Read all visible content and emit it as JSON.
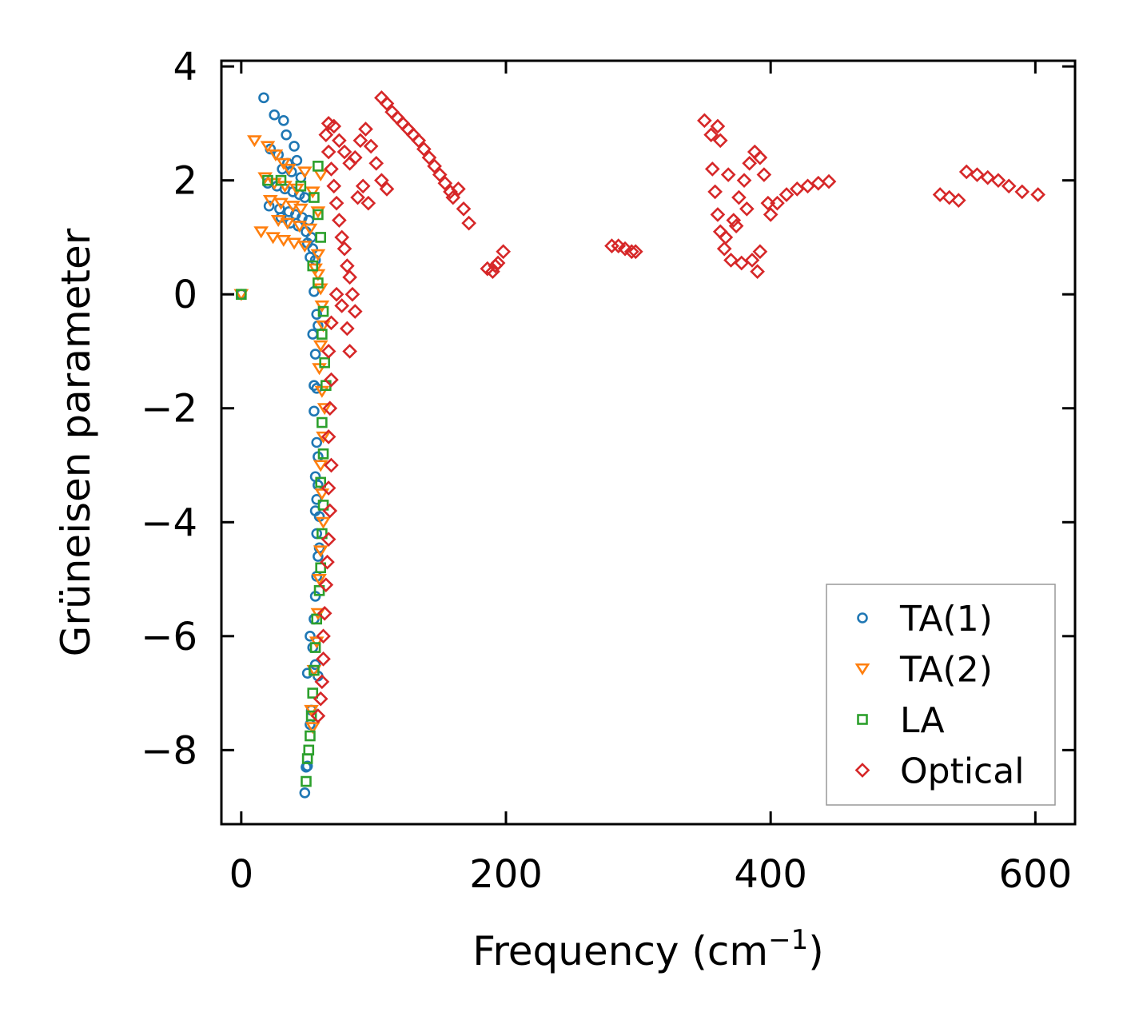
{
  "chart_data": {
    "type": "scatter",
    "title": "",
    "xlabel": "Frequency (cm",
    "xlabel_superscript": "−1",
    "xlabel_suffix": ")",
    "ylabel": "Grüneisen parameter",
    "xlim": [
      -15,
      630
    ],
    "ylim": [
      -9.3,
      4.1
    ],
    "xticks": [
      0,
      200,
      400,
      600
    ],
    "xtick_labels": [
      "0",
      "200",
      "400",
      "600"
    ],
    "yticks": [
      4,
      2,
      0,
      -2,
      -4,
      -6,
      -8
    ],
    "ytick_labels": [
      "4",
      "2",
      "0",
      "−2",
      "−4",
      "−6",
      "−8"
    ],
    "grid": false,
    "legend_position": "bottom-right",
    "series": [
      {
        "name": "TA(1)",
        "marker": "circle",
        "color": "#1f77b4",
        "points": [
          [
            0,
            0
          ],
          [
            17,
            3.45
          ],
          [
            25,
            3.15
          ],
          [
            32,
            3.05
          ],
          [
            34,
            2.8
          ],
          [
            40,
            2.6
          ],
          [
            22,
            2.55
          ],
          [
            28,
            2.45
          ],
          [
            35,
            2.3
          ],
          [
            42,
            2.35
          ],
          [
            31,
            2.2
          ],
          [
            38,
            2.15
          ],
          [
            45,
            2.05
          ],
          [
            20,
            1.95
          ],
          [
            27,
            1.9
          ],
          [
            33,
            1.85
          ],
          [
            39,
            1.8
          ],
          [
            44,
            1.75
          ],
          [
            48,
            1.7
          ],
          [
            21,
            1.55
          ],
          [
            29,
            1.5
          ],
          [
            36,
            1.45
          ],
          [
            41,
            1.4
          ],
          [
            46,
            1.35
          ],
          [
            51,
            1.3
          ],
          [
            30,
            1.35
          ],
          [
            37,
            1.25
          ],
          [
            43,
            1.2
          ],
          [
            49,
            1.1
          ],
          [
            53,
            1.0
          ],
          [
            50,
            0.9
          ],
          [
            54,
            0.8
          ],
          [
            52,
            0.65
          ],
          [
            56,
            0.6
          ],
          [
            55,
            0.05
          ],
          [
            57,
            -0.35
          ],
          [
            58,
            -0.55
          ],
          [
            54,
            -0.7
          ],
          [
            56,
            -1.05
          ],
          [
            55,
            -1.6
          ],
          [
            57,
            -1.65
          ],
          [
            55,
            -2.05
          ],
          [
            57,
            -2.6
          ],
          [
            58,
            -2.85
          ],
          [
            56,
            -3.2
          ],
          [
            58,
            -3.35
          ],
          [
            57,
            -3.6
          ],
          [
            56,
            -3.8
          ],
          [
            59,
            -3.9
          ],
          [
            57,
            -4.2
          ],
          [
            59,
            -4.45
          ],
          [
            58,
            -4.6
          ],
          [
            57,
            -4.95
          ],
          [
            56,
            -5.3
          ],
          [
            55,
            -5.7
          ],
          [
            52,
            -6.0
          ],
          [
            54,
            -6.2
          ],
          [
            56,
            -6.5
          ],
          [
            50,
            -6.65
          ],
          [
            58,
            -6.7
          ],
          [
            53,
            -7.3
          ],
          [
            52,
            -7.55
          ],
          [
            50,
            -8.28
          ],
          [
            49,
            -8.3
          ],
          [
            48,
            -8.75
          ]
        ]
      },
      {
        "name": "TA(2)",
        "marker": "triangle-down",
        "color": "#ff7f0e",
        "points": [
          [
            0,
            0
          ],
          [
            10,
            2.7
          ],
          [
            20,
            2.6
          ],
          [
            26,
            2.45
          ],
          [
            32,
            2.3
          ],
          [
            36,
            2.2
          ],
          [
            48,
            2.15
          ],
          [
            60,
            2.1
          ],
          [
            18,
            2.05
          ],
          [
            25,
            1.95
          ],
          [
            33,
            1.9
          ],
          [
            42,
            1.85
          ],
          [
            54,
            1.8
          ],
          [
            22,
            1.65
          ],
          [
            30,
            1.6
          ],
          [
            39,
            1.55
          ],
          [
            45,
            1.5
          ],
          [
            58,
            1.45
          ],
          [
            28,
            1.3
          ],
          [
            35,
            1.25
          ],
          [
            44,
            1.2
          ],
          [
            52,
            1.15
          ],
          [
            15,
            1.1
          ],
          [
            24,
            1.0
          ],
          [
            32,
            0.95
          ],
          [
            40,
            0.9
          ],
          [
            48,
            0.85
          ],
          [
            58,
            0.7
          ],
          [
            56,
            0.45
          ],
          [
            58,
            0.35
          ],
          [
            60,
            0.1
          ],
          [
            61,
            -0.2
          ],
          [
            62,
            -0.55
          ],
          [
            60,
            -0.9
          ],
          [
            59,
            -1.3
          ],
          [
            61,
            -1.7
          ],
          [
            63,
            -2.0
          ],
          [
            62,
            -2.5
          ],
          [
            60,
            -3.0
          ],
          [
            61,
            -3.5
          ],
          [
            62,
            -4.0
          ],
          [
            60,
            -4.5
          ],
          [
            59,
            -5.0
          ],
          [
            58,
            -5.6
          ],
          [
            57,
            -6.1
          ],
          [
            55,
            -6.6
          ],
          [
            53,
            -7.3
          ],
          [
            54,
            -7.6
          ]
        ]
      },
      {
        "name": "LA",
        "marker": "square",
        "color": "#2ca02c",
        "points": [
          [
            0,
            0
          ],
          [
            20,
            2.0
          ],
          [
            30,
            2.0
          ],
          [
            58,
            2.25
          ],
          [
            45,
            1.9
          ],
          [
            55,
            1.7
          ],
          [
            58,
            1.4
          ],
          [
            60,
            1.0
          ],
          [
            54,
            0.5
          ],
          [
            58,
            0.2
          ],
          [
            62,
            -0.3
          ],
          [
            61,
            -0.7
          ],
          [
            63,
            -1.2
          ],
          [
            64,
            -1.6
          ],
          [
            61,
            -2.25
          ],
          [
            62,
            -2.8
          ],
          [
            60,
            -3.3
          ],
          [
            62,
            -3.7
          ],
          [
            61,
            -4.2
          ],
          [
            60,
            -4.8
          ],
          [
            59,
            -5.2
          ],
          [
            57,
            -5.7
          ],
          [
            56,
            -6.2
          ],
          [
            55,
            -6.6
          ],
          [
            54,
            -7.0
          ],
          [
            53,
            -7.4
          ],
          [
            52,
            -7.75
          ],
          [
            51,
            -8.0
          ],
          [
            50,
            -8.15
          ],
          [
            49,
            -8.55
          ]
        ]
      },
      {
        "name": "Optical",
        "marker": "diamond",
        "color": "#d62728",
        "points": [
          [
            64,
            2.8
          ],
          [
            66,
            2.5
          ],
          [
            68,
            2.2
          ],
          [
            70,
            1.9
          ],
          [
            72,
            1.6
          ],
          [
            74,
            1.3
          ],
          [
            76,
            1.0
          ],
          [
            78,
            0.8
          ],
          [
            80,
            0.5
          ],
          [
            82,
            0.3
          ],
          [
            84,
            0.0
          ],
          [
            86,
            -0.3
          ],
          [
            80,
            -0.6
          ],
          [
            82,
            -1.0
          ],
          [
            66,
            3.0
          ],
          [
            70,
            2.95
          ],
          [
            74,
            2.7
          ],
          [
            78,
            2.5
          ],
          [
            82,
            2.3
          ],
          [
            86,
            2.4
          ],
          [
            90,
            2.7
          ],
          [
            94,
            2.9
          ],
          [
            98,
            2.6
          ],
          [
            102,
            2.3
          ],
          [
            106,
            2.0
          ],
          [
            110,
            1.85
          ],
          [
            88,
            1.7
          ],
          [
            92,
            1.9
          ],
          [
            96,
            1.6
          ],
          [
            72,
            0.0
          ],
          [
            76,
            -0.2
          ],
          [
            68,
            -0.5
          ],
          [
            66,
            -1.0
          ],
          [
            68,
            -1.5
          ],
          [
            67,
            -2.0
          ],
          [
            66,
            -2.5
          ],
          [
            68,
            -3.0
          ],
          [
            66,
            -3.4
          ],
          [
            67,
            -3.8
          ],
          [
            66,
            -4.3
          ],
          [
            65,
            -4.7
          ],
          [
            64,
            -5.1
          ],
          [
            63,
            -5.6
          ],
          [
            62,
            -6.0
          ],
          [
            62,
            -6.4
          ],
          [
            61,
            -6.8
          ],
          [
            60,
            -7.1
          ],
          [
            58,
            -7.4
          ],
          [
            106,
            3.45
          ],
          [
            110,
            3.35
          ],
          [
            114,
            3.2
          ],
          [
            118,
            3.1
          ],
          [
            122,
            3.0
          ],
          [
            126,
            2.9
          ],
          [
            130,
            2.8
          ],
          [
            134,
            2.7
          ],
          [
            138,
            2.55
          ],
          [
            142,
            2.4
          ],
          [
            146,
            2.25
          ],
          [
            150,
            2.1
          ],
          [
            154,
            1.95
          ],
          [
            158,
            1.8
          ],
          [
            160,
            1.7
          ],
          [
            164,
            1.85
          ],
          [
            168,
            1.5
          ],
          [
            172,
            1.25
          ],
          [
            186,
            0.45
          ],
          [
            190,
            0.4
          ],
          [
            194,
            0.55
          ],
          [
            198,
            0.75
          ],
          [
            192,
            0.5
          ],
          [
            280,
            0.85
          ],
          [
            285,
            0.85
          ],
          [
            290,
            0.8
          ],
          [
            295,
            0.75
          ],
          [
            298,
            0.75
          ],
          [
            350,
            3.05
          ],
          [
            355,
            2.8
          ],
          [
            360,
            2.95
          ],
          [
            362,
            2.7
          ],
          [
            356,
            2.2
          ],
          [
            358,
            1.8
          ],
          [
            360,
            1.4
          ],
          [
            362,
            1.1
          ],
          [
            365,
            0.8
          ],
          [
            370,
            0.6
          ],
          [
            378,
            0.55
          ],
          [
            386,
            0.6
          ],
          [
            390,
            0.4
          ],
          [
            392,
            0.75
          ],
          [
            372,
            1.3
          ],
          [
            376,
            1.7
          ],
          [
            380,
            2.0
          ],
          [
            384,
            2.3
          ],
          [
            388,
            2.5
          ],
          [
            392,
            2.4
          ],
          [
            395,
            2.1
          ],
          [
            398,
            1.6
          ],
          [
            400,
            1.4
          ],
          [
            405,
            1.6
          ],
          [
            412,
            1.75
          ],
          [
            420,
            1.85
          ],
          [
            428,
            1.9
          ],
          [
            436,
            1.95
          ],
          [
            444,
            1.98
          ],
          [
            366,
            1.0
          ],
          [
            374,
            1.2
          ],
          [
            382,
            1.5
          ],
          [
            368,
            2.1
          ],
          [
            528,
            1.75
          ],
          [
            535,
            1.7
          ],
          [
            542,
            1.65
          ],
          [
            548,
            2.15
          ],
          [
            556,
            2.1
          ],
          [
            564,
            2.05
          ],
          [
            572,
            2.0
          ],
          [
            580,
            1.9
          ],
          [
            590,
            1.8
          ],
          [
            602,
            1.75
          ]
        ]
      }
    ]
  }
}
